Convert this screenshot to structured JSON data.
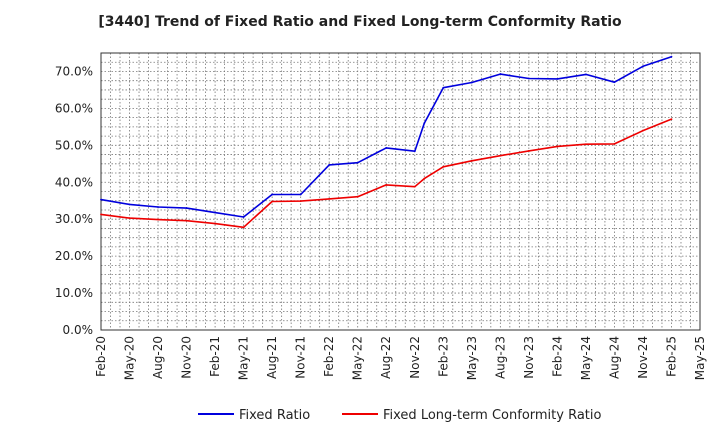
{
  "chart_data": {
    "type": "line",
    "title": "[3440]  Trend of Fixed Ratio and Fixed Long-term Conformity Ratio",
    "xlabel": "",
    "ylabel": "",
    "ylim": [
      0,
      75
    ],
    "y_ticks": [
      "0.0%",
      "10.0%",
      "20.0%",
      "30.0%",
      "40.0%",
      "50.0%",
      "60.0%",
      "70.0%"
    ],
    "x_ticks": [
      "Feb-20",
      "May-20",
      "Aug-20",
      "Nov-20",
      "Feb-21",
      "May-21",
      "Aug-21",
      "Nov-21",
      "Feb-22",
      "May-22",
      "Aug-22",
      "Nov-22",
      "Feb-23",
      "May-23",
      "Aug-23",
      "Nov-23",
      "Feb-24",
      "May-24",
      "Aug-24",
      "Nov-24",
      "Feb-25",
      "May-25"
    ],
    "grid": true,
    "legend_position": "bottom",
    "x": [
      "Feb-20",
      "May-20",
      "Aug-20",
      "Nov-20",
      "Feb-21",
      "May-21",
      "Aug-21",
      "Nov-21",
      "Feb-22",
      "May-22",
      "Aug-22",
      "Nov-22",
      "Dec-22",
      "Feb-23",
      "May-23",
      "Aug-23",
      "Nov-23",
      "Feb-24",
      "May-24",
      "Aug-24",
      "Nov-24",
      "Feb-25"
    ],
    "series": [
      {
        "name": "Fixed Ratio",
        "color": "#0000dd",
        "values": [
          35.3,
          34.0,
          33.3,
          33.0,
          31.8,
          30.6,
          36.7,
          36.7,
          44.7,
          45.3,
          49.3,
          48.4,
          56.0,
          65.6,
          67.0,
          69.3,
          68.1,
          68.0,
          69.2,
          67.1,
          71.4,
          74.0
        ]
      },
      {
        "name": "Fixed Long-term Conformity Ratio",
        "color": "#ee0000",
        "values": [
          31.3,
          30.3,
          29.9,
          29.6,
          28.8,
          27.8,
          34.8,
          34.9,
          35.5,
          36.1,
          39.3,
          38.8,
          41.0,
          44.2,
          45.8,
          47.2,
          48.5,
          49.7,
          50.3,
          50.4,
          54.0,
          57.1
        ]
      }
    ]
  }
}
